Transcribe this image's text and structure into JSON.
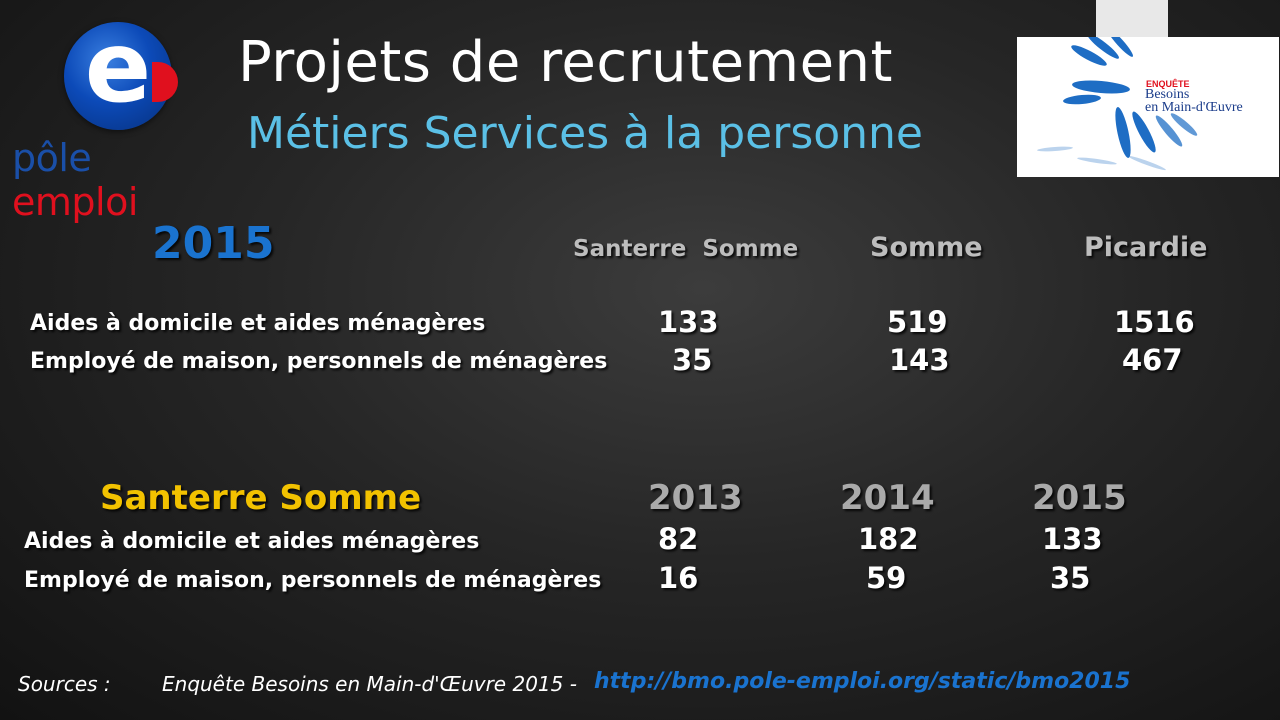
{
  "header": {
    "title": "Projets de recrutement",
    "subtitle": "Métiers Services à la personne"
  },
  "logos": {
    "pole_emploi": {
      "letter": "e",
      "word1": "pôle",
      "word2": "emploi"
    },
    "bmo": {
      "line0": "ENQUÊTE",
      "line1": "Besoins",
      "line2": "en Main-d'Œuvre"
    }
  },
  "table1": {
    "year": "2015",
    "columns": [
      "Santerre  Somme",
      "Somme",
      "Picardie"
    ],
    "rows": [
      {
        "label": "Aides à domicile et aides ménagères",
        "values": [
          "133",
          "519",
          "1516"
        ]
      },
      {
        "label": "Employé de maison, personnels de ménagères",
        "values": [
          "35",
          "143",
          "467"
        ]
      }
    ]
  },
  "table2": {
    "title": "Santerre Somme",
    "columns": [
      "2013",
      "2014",
      "2015"
    ],
    "rows": [
      {
        "label": "Aides à domicile et aides ménagères",
        "values": [
          "82",
          "182",
          "133"
        ]
      },
      {
        "label": "Employé de maison, personnels de ménagères",
        "values": [
          "16",
          "59",
          "35"
        ]
      }
    ]
  },
  "footer": {
    "sources_label": "Sources :",
    "sources_text": "Enquête Besoins en Main-d'Œuvre 2015 -",
    "link": "http://bmo.pole-emploi.org/static/bmo2015"
  },
  "colors": {
    "title": "#ffffff",
    "subtitle": "#5bc0e6",
    "year_accent": "#1a73cf",
    "section_title": "#f2c200",
    "link": "#1a73cf"
  }
}
